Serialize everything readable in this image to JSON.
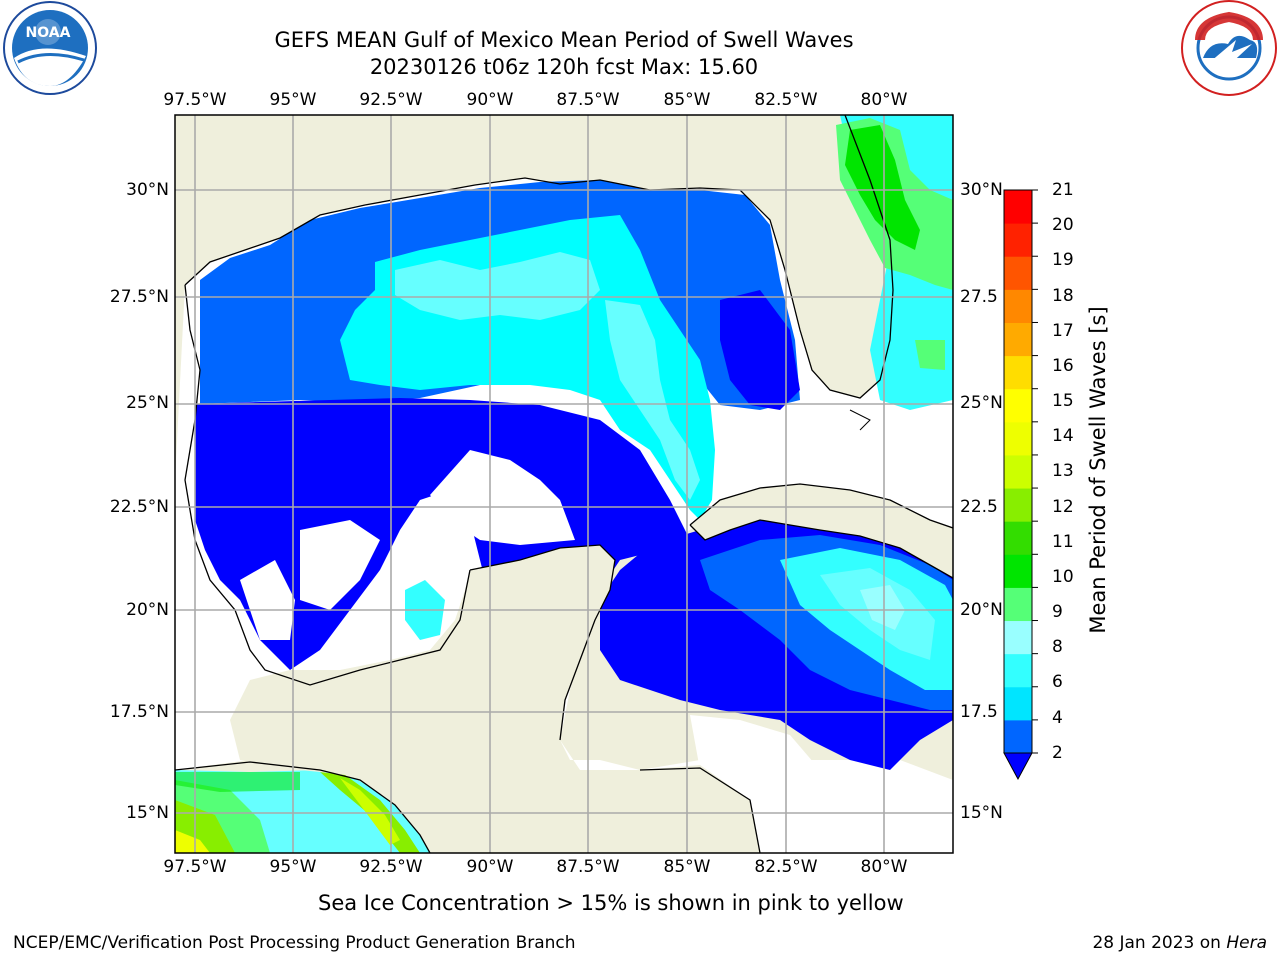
{
  "title_line1": "GEFS MEAN Gulf of Mexico Mean Period of Swell Waves",
  "title_line2": "20230126 t06z 120h fcst   Max: 15.60",
  "lon_labels": [
    "97.5°W",
    "95°W",
    "92.5°W",
    "90°W",
    "87.5°W",
    "85°W",
    "82.5°W",
    "80°W"
  ],
  "lat_labels": [
    "30°N",
    "27.5°N",
    "25°N",
    "22.5°N",
    "20°N",
    "17.5°N",
    "15°N"
  ],
  "lat_labels_right": [
    "30°N",
    "27.5",
    "25°N",
    "22.5",
    "20°N",
    "17.5",
    "15°N"
  ],
  "colorbar": {
    "title": "Mean Period of Swell Waves [s]",
    "ticks": [
      "21",
      "20",
      "19",
      "18",
      "17",
      "16",
      "15",
      "14",
      "13",
      "12",
      "11",
      "10",
      "9",
      "8",
      "6",
      "4",
      "2"
    ],
    "colors": [
      "#0066ff",
      "#00e5ff",
      "#33ffff",
      "#99ffff",
      "#55ff77",
      "#00e500",
      "#33dd00",
      "#88ee00",
      "#ccff00",
      "#eeff00",
      "#ffff00",
      "#ffdd00",
      "#ffaa00",
      "#ff8800",
      "#ff5500",
      "#ff2200",
      "#ff0000"
    ]
  },
  "note": "Sea Ice Concentration > 15% is shown in pink to yellow",
  "footer_left": "NCEP/EMC/Verification Post Processing Product Generation Branch",
  "footer_date": "28 Jan 2023 on ",
  "footer_host": "Hera",
  "logos": {
    "left": "NOAA",
    "right": "NATIONAL WEATHER SERVICE"
  },
  "palette": {
    "land": "#efefdc",
    "water_none": "#ffffff",
    "blue": "#0000ff",
    "med_blue": "#0066ff",
    "cyan": "#00ffff",
    "light_cyan": "#66ffff",
    "green": "#22ee22"
  }
}
